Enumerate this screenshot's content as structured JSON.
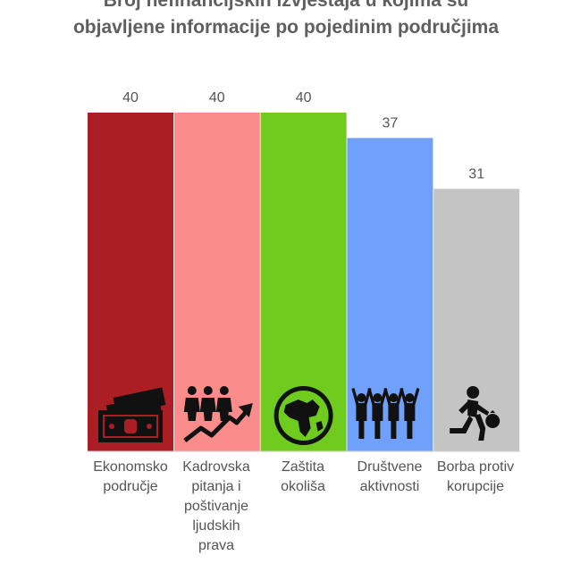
{
  "title_line1": "Broj nefinancijskih izvještaja u kojima su",
  "title_line2": "objavljene informacije po pojedinim područjima",
  "chart_data": {
    "type": "bar",
    "title": "Broj nefinancijskih izvještaja u kojima su objavljene informacije po pojedinim područjima",
    "categories": [
      "Ekonomsko područje",
      "Kadrovska pitanja i poštivanje ljudskih prava",
      "Zaštita okoliša",
      "Društvene aktivnosti",
      "Borba protiv korupcije"
    ],
    "category_lines": [
      [
        "Ekonomsko",
        "područje"
      ],
      [
        "Kadrovska",
        "pitanja i",
        "poštivanje",
        "ljudskih",
        "prava"
      ],
      [
        "Zaštita",
        "okoliša"
      ],
      [
        "Društvene",
        "aktivnosti"
      ],
      [
        "Borba protiv",
        "korupcije"
      ]
    ],
    "values": [
      40,
      40,
      40,
      37,
      31
    ],
    "colors": [
      "#ab1f24",
      "#fb8c8c",
      "#6fcc1e",
      "#6fa1fb",
      "#c4c4c4"
    ],
    "icons": [
      "money-icon",
      "people-growth-icon",
      "globe-icon",
      "crowd-icon",
      "thief-icon"
    ],
    "xlabel": "",
    "ylabel": "",
    "ylim": [
      0,
      40
    ],
    "grid": false,
    "legend": "none"
  }
}
